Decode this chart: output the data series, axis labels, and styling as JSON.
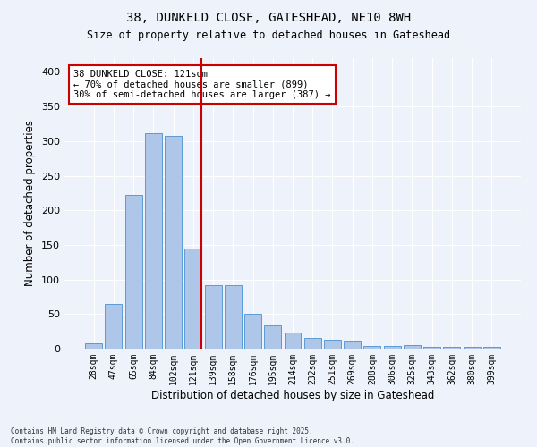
{
  "title1": "38, DUNKELD CLOSE, GATESHEAD, NE10 8WH",
  "title2": "Size of property relative to detached houses in Gateshead",
  "xlabel": "Distribution of detached houses by size in Gateshead",
  "ylabel": "Number of detached properties",
  "bar_labels": [
    "28sqm",
    "47sqm",
    "65sqm",
    "84sqm",
    "102sqm",
    "121sqm",
    "139sqm",
    "158sqm",
    "176sqm",
    "195sqm",
    "214sqm",
    "232sqm",
    "251sqm",
    "269sqm",
    "288sqm",
    "306sqm",
    "325sqm",
    "343sqm",
    "362sqm",
    "380sqm",
    "399sqm"
  ],
  "bar_values": [
    8,
    65,
    222,
    311,
    307,
    145,
    92,
    92,
    50,
    33,
    23,
    15,
    13,
    11,
    4,
    4,
    5,
    3,
    2,
    2,
    3
  ],
  "bar_color": "#aec6e8",
  "bar_edge_color": "#5b9bd5",
  "vline_index": 5,
  "vline_color": "#cc0000",
  "annotation_title": "38 DUNKELD CLOSE: 121sqm",
  "annotation_line1": "← 70% of detached houses are smaller (899)",
  "annotation_line2": "30% of semi-detached houses are larger (387) →",
  "annotation_box_color": "#ffffff",
  "annotation_box_edge": "#cc0000",
  "background_color": "#eef2fa",
  "grid_color": "#ffffff",
  "ylim": [
    0,
    420
  ],
  "yticks": [
    0,
    50,
    100,
    150,
    200,
    250,
    300,
    350,
    400
  ],
  "footer1": "Contains HM Land Registry data © Crown copyright and database right 2025.",
  "footer2": "Contains public sector information licensed under the Open Government Licence v3.0."
}
